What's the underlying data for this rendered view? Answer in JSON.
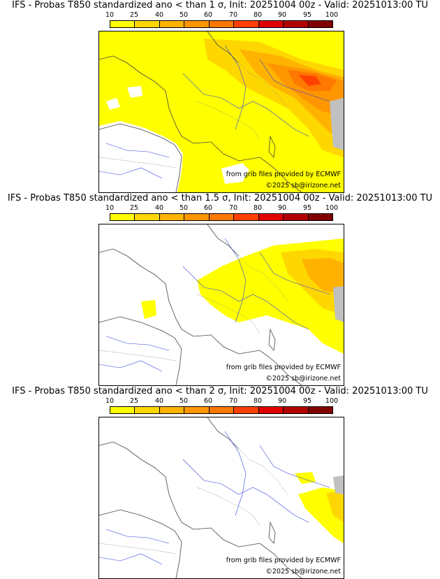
{
  "colorbar": {
    "ticks": [
      "10",
      "25",
      "40",
      "50",
      "60",
      "70",
      "80",
      "90",
      "95",
      "100"
    ],
    "colors": [
      "#ffff00",
      "#ffd700",
      "#ffb300",
      "#ff9600",
      "#ff7800",
      "#ff4000",
      "#e00000",
      "#b00000",
      "#800000"
    ]
  },
  "panels": [
    {
      "title": "IFS - Probas T850  standardized ano < than 1 σ, Init: 20251004 00z - Valid: 20251013:00 TU",
      "credit_source": "from grib files provided by ECMWF",
      "credit_copyright": "©2025 sb@irizone.net",
      "coverage": "high"
    },
    {
      "title": "IFS - Probas T850  standardized ano < than 1.5 σ, Init: 20251004 00z - Valid: 20251013:00 TU",
      "credit_source": "from grib files provided by ECMWF",
      "credit_copyright": "©2025 sb@irizone.net",
      "coverage": "medium"
    },
    {
      "title": "IFS - Probas T850  standardized ano < than 2 σ, Init: 20251004 00z - Valid: 20251013:00 TU",
      "credit_source": "from grib files provided by ECMWF",
      "credit_copyright": "©2025 sb@irizone.net",
      "coverage": "low"
    }
  ]
}
